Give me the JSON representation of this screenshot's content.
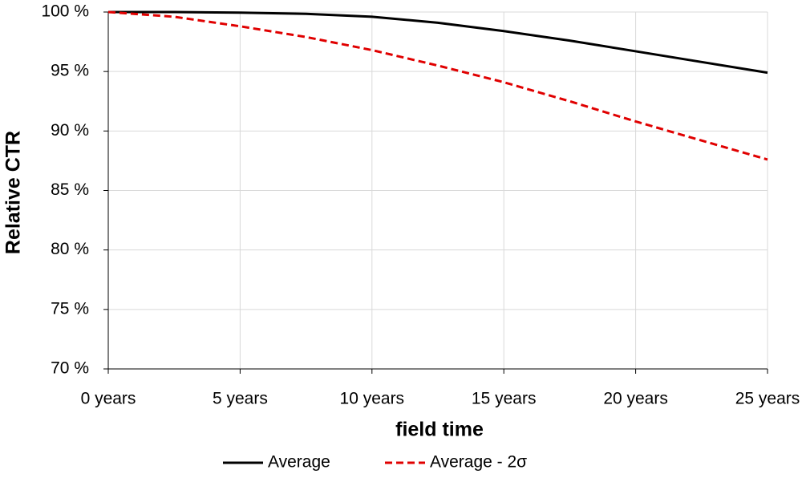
{
  "chart_data": {
    "type": "line",
    "x_label": "field time",
    "y_label": "Relative CTR",
    "x": [
      0,
      2.5,
      5,
      7.5,
      10,
      12.5,
      15,
      17.5,
      20,
      22.5,
      25
    ],
    "series": [
      {
        "name": "Average",
        "color": "#000000",
        "line_style": "solid",
        "values": [
          100,
          100,
          99.95,
          99.85,
          99.6,
          99.1,
          98.4,
          97.6,
          96.7,
          95.8,
          94.9
        ]
      },
      {
        "name": "Average - 2σ",
        "color": "#e00000",
        "line_style": "dashed",
        "values": [
          100,
          99.6,
          98.8,
          97.9,
          96.8,
          95.5,
          94.1,
          92.5,
          90.8,
          89.2,
          87.6
        ]
      }
    ],
    "xlim": [
      0,
      25
    ],
    "xticks": [
      {
        "value": 0,
        "label": "0 years"
      },
      {
        "value": 5,
        "label": "5 years"
      },
      {
        "value": 10,
        "label": "10 years"
      },
      {
        "value": 15,
        "label": "15 years"
      },
      {
        "value": 20,
        "label": "20 years"
      },
      {
        "value": 25,
        "label": "25 years"
      }
    ],
    "ylim": [
      70,
      100
    ],
    "yticks": [
      {
        "value": 70,
        "label": "70 %"
      },
      {
        "value": 75,
        "label": "75 %"
      },
      {
        "value": 80,
        "label": "80 %"
      },
      {
        "value": 85,
        "label": "85 %"
      },
      {
        "value": 90,
        "label": "90 %"
      },
      {
        "value": 95,
        "label": "95 %"
      },
      {
        "value": 100,
        "label": "100 %"
      }
    ],
    "grid": true,
    "legend": "bottom"
  }
}
